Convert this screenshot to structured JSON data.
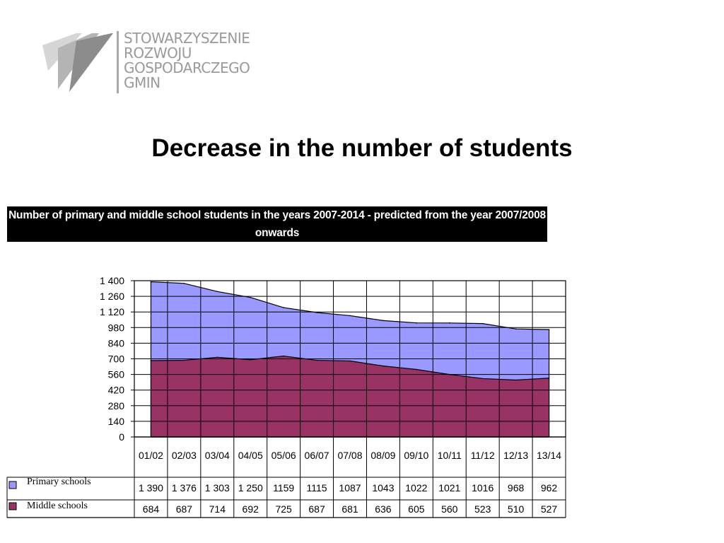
{
  "logo": {
    "lines": [
      "STOWARZYSZENIE",
      "ROZWOJU",
      "GOSPODARCZEGO",
      "GMIN"
    ],
    "colors": {
      "light": "#d6d6d6",
      "mid": "#b4b4b4",
      "dark": "#8c8c8c"
    }
  },
  "page": {
    "title": "Decrease in the number of students"
  },
  "chart_data": {
    "type": "area",
    "stacked": false,
    "title": "Number of primary and middle school  students in the years 2007-2014 - predicted from  the year 2007/2008  onwards",
    "categories": [
      "01/02",
      "02/03",
      "03/04",
      "04/05",
      "05/06",
      "06/07",
      "07/08",
      "08/09",
      "09/10",
      "10/11",
      "11/12",
      "12/13",
      "13/14"
    ],
    "ylim": [
      0,
      1400
    ],
    "yticks": [
      0,
      140,
      280,
      420,
      560,
      700,
      840,
      980,
      1120,
      1260,
      1400
    ],
    "ytick_labels": [
      "0",
      "140",
      "280",
      "420",
      "560",
      "700",
      "840",
      "980",
      "1 120",
      "1 260",
      "1 400"
    ],
    "grid": true,
    "legend": "bottom-table",
    "series": [
      {
        "name": "Primary schools",
        "color": "#9999ff",
        "values": [
          1390,
          1376,
          1303,
          1250,
          1159,
          1115,
          1087,
          1043,
          1022,
          1021,
          1016,
          968,
          962
        ],
        "labels": [
          "1 390",
          "1 376",
          "1 303",
          "1 250",
          "1159",
          "1115",
          "1087",
          "1043",
          "1022",
          "1021",
          "1016",
          "968",
          "962"
        ]
      },
      {
        "name": "Middle schools",
        "color": "#993366",
        "values": [
          684,
          687,
          714,
          692,
          725,
          687,
          681,
          636,
          605,
          560,
          523,
          510,
          527
        ],
        "labels": [
          "684",
          "687",
          "714",
          "692",
          "725",
          "687",
          "681",
          "636",
          "605",
          "560",
          "523",
          "510",
          "527"
        ]
      }
    ]
  }
}
